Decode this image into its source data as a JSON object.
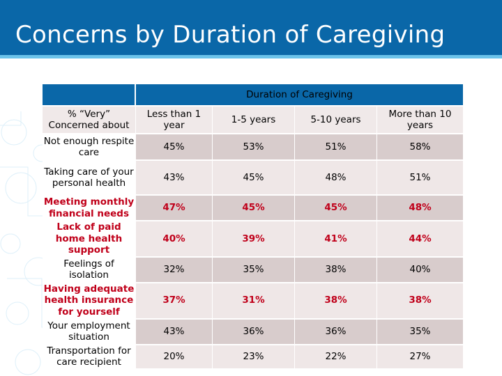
{
  "title": "Concerns by Duration of Caregiving",
  "table": {
    "group_header": "Duration of Caregiving",
    "row_header_label": "% “Very” Concerned about",
    "columns": [
      "Less than 1 year",
      "1-5 years",
      "5-10 years",
      "More than 10 years"
    ],
    "rows": [
      {
        "label": "Not enough respite care",
        "bold": false,
        "values": [
          "45%",
          "53%",
          "51%",
          "58%"
        ]
      },
      {
        "label": "Taking care of your personal health",
        "bold": false,
        "values": [
          "43%",
          "45%",
          "48%",
          "51%"
        ]
      },
      {
        "label": "Meeting monthly financial needs",
        "bold": true,
        "values": [
          "47%",
          "45%",
          "45%",
          "48%"
        ]
      },
      {
        "label": "Lack of paid home health support",
        "bold": true,
        "values": [
          "40%",
          "39%",
          "41%",
          "44%"
        ]
      },
      {
        "label": "Feelings of isolation",
        "bold": false,
        "values": [
          "32%",
          "35%",
          "38%",
          "40%"
        ]
      },
      {
        "label": "Having adequate health insurance for yourself",
        "bold": true,
        "values": [
          "37%",
          "31%",
          "38%",
          "38%"
        ]
      },
      {
        "label": "Your employment situation",
        "bold": false,
        "values": [
          "43%",
          "36%",
          "36%",
          "35%"
        ]
      },
      {
        "label": "Transportation for care recipient",
        "bold": false,
        "values": [
          "20%",
          "23%",
          "22%",
          "27%"
        ]
      }
    ]
  },
  "colors": {
    "header_blue": "#0a67a8",
    "accent_cyan": "#6cc3ea",
    "emphasis_red": "#c0001a"
  }
}
